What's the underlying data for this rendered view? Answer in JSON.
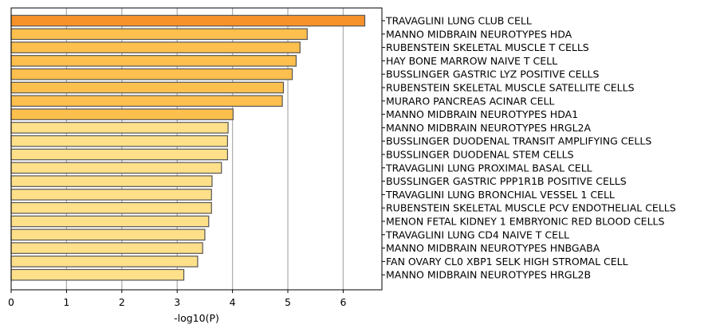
{
  "chart_data": {
    "type": "bar",
    "orientation": "horizontal",
    "xlabel": "-log10(P)",
    "xlim": [
      0,
      6.7
    ],
    "xticks": [
      0,
      1,
      2,
      3,
      4,
      5,
      6
    ],
    "grid": "vertical",
    "categories": [
      "TRAVAGLINI LUNG CLUB CELL",
      "MANNO MIDBRAIN NEUROTYPES HDA",
      "RUBENSTEIN SKELETAL MUSCLE T CELLS",
      "HAY BONE MARROW NAIVE T CELL",
      "BUSSLINGER GASTRIC LYZ POSITIVE CELLS",
      "RUBENSTEIN SKELETAL MUSCLE SATELLITE CELLS",
      "MURARO PANCREAS ACINAR CELL",
      "MANNO MIDBRAIN NEUROTYPES HDA1",
      "MANNO MIDBRAIN NEUROTYPES HRGL2A",
      "BUSSLINGER DUODENAL TRANSIT AMPLIFYING CELLS",
      "BUSSLINGER DUODENAL STEM CELLS",
      "TRAVAGLINI LUNG PROXIMAL BASAL CELL",
      "BUSSLINGER GASTRIC PPP1R1B POSITIVE CELLS",
      "TRAVAGLINI LUNG BRONCHIAL VESSEL 1 CELL",
      "RUBENSTEIN SKELETAL MUSCLE PCV ENDOTHELIAL CELLS",
      "MENON FETAL KIDNEY 1 EMBRYONIC RED BLOOD CELLS",
      "TRAVAGLINI LUNG CD4 NAIVE T CELL",
      "MANNO MIDBRAIN NEUROTYPES HNBGABA",
      "FAN OVARY CL0 XBP1 SELK HIGH STROMAL CELL",
      "MANNO MIDBRAIN NEUROTYPES HRGL2B"
    ],
    "values": [
      6.39,
      5.35,
      5.22,
      5.15,
      5.08,
      4.92,
      4.9,
      4.01,
      3.92,
      3.91,
      3.91,
      3.8,
      3.63,
      3.62,
      3.62,
      3.57,
      3.5,
      3.46,
      3.37,
      3.12
    ],
    "colors": [
      "#f7922a",
      "#fdbf4e",
      "#fdbf4e",
      "#fdbf4e",
      "#fdbf4e",
      "#fdbf4e",
      "#fdbf4e",
      "#fdbf4e",
      "#fee08b",
      "#fee08b",
      "#fee08b",
      "#fee08b",
      "#fee08b",
      "#fee08b",
      "#fee08b",
      "#fee08b",
      "#fee08b",
      "#fee08b",
      "#fee08b",
      "#fee08b"
    ],
    "bar_edge_color": "#555555",
    "grid_color": "#b0b0b0"
  }
}
